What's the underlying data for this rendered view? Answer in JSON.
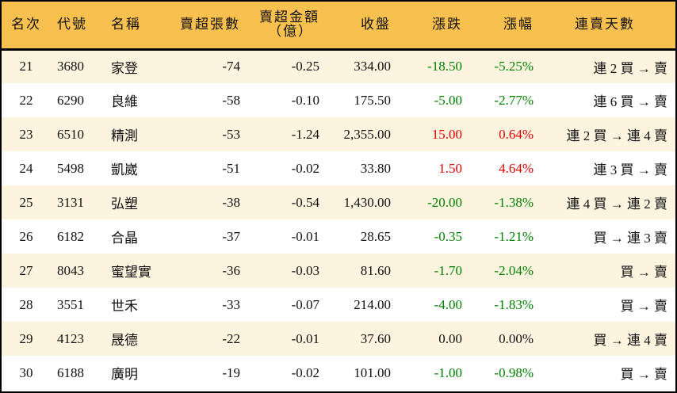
{
  "headers": [
    "名次",
    "代號",
    "名稱",
    "賣超張數",
    "賣超金額",
    "（億）",
    "收盤",
    "漲跌",
    "漲幅",
    "連賣天數"
  ],
  "colors": {
    "header_bg": "#f8c04f",
    "row_alt_bg": "#fdf4e0",
    "up": "#e00000",
    "down": "#008000"
  },
  "rows": [
    {
      "rank": "21",
      "code": "3680",
      "name": "家登",
      "net_lots": "-74",
      "net_amount": "-0.25",
      "close": "334.00",
      "change": "-18.50",
      "pct": "-5.25%",
      "streak": "連 2 買 → 賣",
      "dir": "down"
    },
    {
      "rank": "22",
      "code": "6290",
      "name": "良維",
      "net_lots": "-58",
      "net_amount": "-0.10",
      "close": "175.50",
      "change": "-5.00",
      "pct": "-2.77%",
      "streak": "連 6 買 → 賣",
      "dir": "down"
    },
    {
      "rank": "23",
      "code": "6510",
      "name": "精測",
      "net_lots": "-53",
      "net_amount": "-1.24",
      "close": "2,355.00",
      "change": "15.00",
      "pct": "0.64%",
      "streak": "連 2 買 → 連 4 賣",
      "dir": "up"
    },
    {
      "rank": "24",
      "code": "5498",
      "name": "凱崴",
      "net_lots": "-51",
      "net_amount": "-0.02",
      "close": "33.80",
      "change": "1.50",
      "pct": "4.64%",
      "streak": "連 3 買 → 賣",
      "dir": "up"
    },
    {
      "rank": "25",
      "code": "3131",
      "name": "弘塑",
      "net_lots": "-38",
      "net_amount": "-0.54",
      "close": "1,430.00",
      "change": "-20.00",
      "pct": "-1.38%",
      "streak": "連 4 買 → 連 2 賣",
      "dir": "down"
    },
    {
      "rank": "26",
      "code": "6182",
      "name": "合晶",
      "net_lots": "-37",
      "net_amount": "-0.01",
      "close": "28.65",
      "change": "-0.35",
      "pct": "-1.21%",
      "streak": "買 → 連 3 賣",
      "dir": "down"
    },
    {
      "rank": "27",
      "code": "8043",
      "name": "蜜望實",
      "net_lots": "-36",
      "net_amount": "-0.03",
      "close": "81.60",
      "change": "-1.70",
      "pct": "-2.04%",
      "streak": "買 → 賣",
      "dir": "down"
    },
    {
      "rank": "28",
      "code": "3551",
      "name": "世禾",
      "net_lots": "-33",
      "net_amount": "-0.07",
      "close": "214.00",
      "change": "-4.00",
      "pct": "-1.83%",
      "streak": "買 → 賣",
      "dir": "down"
    },
    {
      "rank": "29",
      "code": "4123",
      "name": "晟德",
      "net_lots": "-22",
      "net_amount": "-0.01",
      "close": "37.60",
      "change": "0.00",
      "pct": "0.00%",
      "streak": "買 → 連 4 賣",
      "dir": "flat"
    },
    {
      "rank": "30",
      "code": "6188",
      "name": "廣明",
      "net_lots": "-19",
      "net_amount": "-0.02",
      "close": "101.00",
      "change": "-1.00",
      "pct": "-0.98%",
      "streak": "買 → 賣",
      "dir": "down"
    }
  ]
}
